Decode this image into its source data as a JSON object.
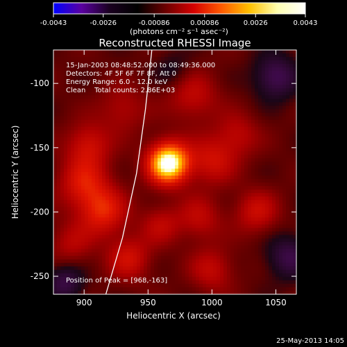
{
  "chart_data": {
    "type": "heatmap",
    "title": "Reconstructed RHESSI Image",
    "colorbar": {
      "ticks": [
        "-0.0043",
        "-0.0026",
        "-0.00086",
        "0.00086",
        "0.0026",
        "0.0043"
      ],
      "tick_values": [
        -0.0043,
        -0.0026,
        -0.00086,
        0.00086,
        0.0026,
        0.0043
      ],
      "range": [
        -0.0043,
        0.0043
      ],
      "unit_label": "(photons cm⁻² s⁻¹ asec⁻²)",
      "colors": [
        "#0000ff",
        "#5a00a0",
        "#1a0020",
        "#000000",
        "#6a0000",
        "#d40000",
        "#ff5a00",
        "#ffc000",
        "#ffffb0",
        "#ffffff"
      ]
    },
    "xlabel": "Heliocentric X (arcsec)",
    "ylabel": "Heliocentric Y (arcsec)",
    "xlim": [
      876,
      1066
    ],
    "ylim": [
      -264,
      -74
    ],
    "xticks": [
      900,
      950,
      1000,
      1050
    ],
    "yticks": [
      -100,
      -150,
      -200,
      -250
    ],
    "annotations": [
      "15-Jan-2003 08:48:52.000 to 08:49:36.000",
      "Detectors: 4F 5F 6F 7F 8F, Att 0",
      "Energy Range: 6.0 - 12.0 keV",
      "Clean    Total counts: 2.86E+03"
    ],
    "peak_label": "Position of Peak = [968,-163]",
    "peak": {
      "x": 968,
      "y": -163,
      "value": 0.0043
    },
    "limb_curve": [
      [
        953,
        -74
      ],
      [
        948,
        -120
      ],
      [
        941,
        -170
      ],
      [
        930,
        -220
      ],
      [
        917,
        -264
      ]
    ],
    "blobs": [
      {
        "x": 966,
        "y": -162,
        "v": 1.0,
        "r": 11
      },
      {
        "x": 900,
        "y": -178,
        "v": 0.35,
        "r": 14
      },
      {
        "x": 903,
        "y": -148,
        "v": 0.3,
        "r": 12
      },
      {
        "x": 915,
        "y": -200,
        "v": 0.38,
        "r": 13
      },
      {
        "x": 935,
        "y": -236,
        "v": 0.3,
        "r": 12
      },
      {
        "x": 985,
        "y": -110,
        "v": 0.25,
        "r": 14
      },
      {
        "x": 1000,
        "y": -160,
        "v": 0.3,
        "r": 13
      },
      {
        "x": 1035,
        "y": -200,
        "v": 0.28,
        "r": 12
      },
      {
        "x": 990,
        "y": -205,
        "v": 0.24,
        "r": 12
      },
      {
        "x": 960,
        "y": -210,
        "v": 0.22,
        "r": 11
      },
      {
        "x": 1020,
        "y": -140,
        "v": 0.22,
        "r": 12
      },
      {
        "x": 1000,
        "y": -245,
        "v": 0.25,
        "r": 12
      },
      {
        "x": 930,
        "y": -120,
        "v": 0.2,
        "r": 13
      },
      {
        "x": 890,
        "y": -225,
        "v": 0.2,
        "r": 12
      },
      {
        "x": 1050,
        "y": -95,
        "v": -0.35,
        "r": 12
      },
      {
        "x": 1060,
        "y": -235,
        "v": -0.3,
        "r": 12
      },
      {
        "x": 885,
        "y": -255,
        "v": -0.3,
        "r": 10
      },
      {
        "x": 970,
        "y": -90,
        "v": -0.15,
        "r": 10
      }
    ]
  },
  "footer": {
    "date": "25-May-2013 14:05"
  }
}
